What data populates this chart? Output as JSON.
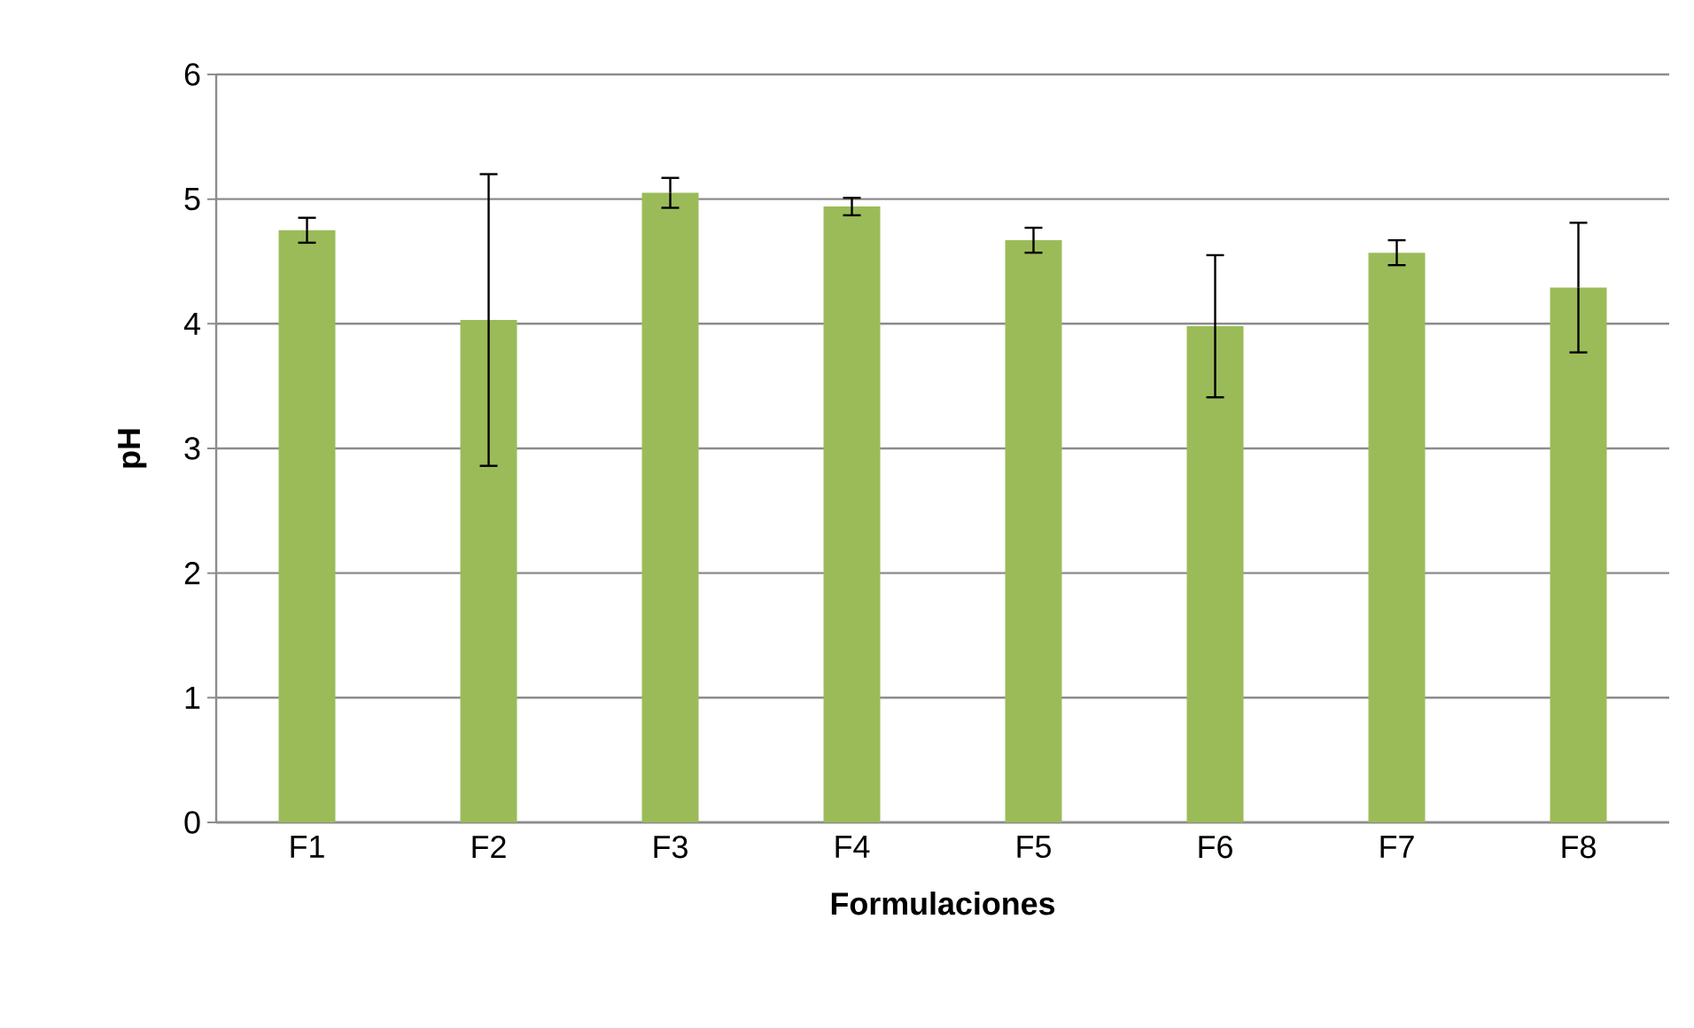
{
  "chart_data": {
    "type": "bar",
    "xlabel": "Formulaciones",
    "ylabel": "pH",
    "categories": [
      "F1",
      "F2",
      "F3",
      "F4",
      "F5",
      "F6",
      "F7",
      "F8"
    ],
    "values": [
      4.75,
      4.03,
      5.05,
      4.94,
      4.67,
      3.98,
      4.57,
      4.29
    ],
    "errors": [
      0.1,
      1.17,
      0.12,
      0.07,
      0.1,
      0.57,
      0.1,
      0.52
    ],
    "color": "#9bbb59",
    "ylim": [
      0,
      6
    ],
    "yticks": [
      0,
      1,
      2,
      3,
      4,
      5,
      6
    ],
    "grid": "y"
  }
}
